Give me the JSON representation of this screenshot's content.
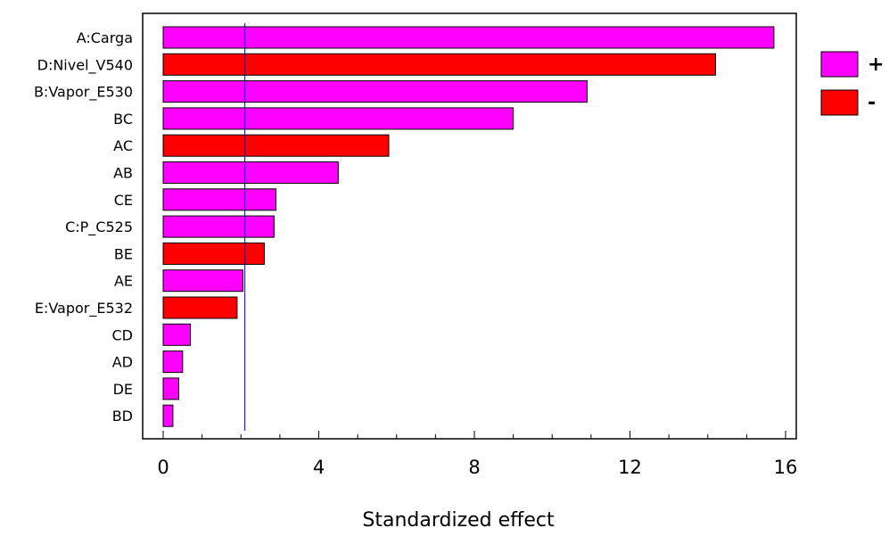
{
  "chart_data": {
    "type": "bar",
    "orientation": "horizontal",
    "title": "",
    "xlabel": "Standardized effect",
    "ylabel": "",
    "xlim": [
      0,
      16
    ],
    "x_ticks": [
      0,
      4,
      8,
      12,
      16
    ],
    "categories": [
      "A:Carga",
      "D:Nivel_V540",
      "B:Vapor_E530",
      "BC",
      "AC",
      "AB",
      "CE",
      "C:P_C525",
      "BE",
      "AE",
      "E:Vapor_E532",
      "CD",
      "AD",
      "DE",
      "BD"
    ],
    "values": [
      15.7,
      14.2,
      10.9,
      9.0,
      5.8,
      4.5,
      2.9,
      2.85,
      2.6,
      2.05,
      1.9,
      0.7,
      0.5,
      0.4,
      0.25
    ],
    "signs": [
      "+",
      "-",
      "+",
      "+",
      "-",
      "+",
      "+",
      "+",
      "-",
      "+",
      "-",
      "+",
      "+",
      "+",
      "+"
    ],
    "reference_line": 2.1,
    "legend": {
      "placement": "right",
      "entries": [
        {
          "label": "+",
          "color": "#ff00ff"
        },
        {
          "label": "-",
          "color": "#ff0000"
        }
      ]
    },
    "colors": {
      "positive": "#ff00ff",
      "negative": "#ff0000",
      "reference": "#0000cc"
    },
    "grid": false
  }
}
